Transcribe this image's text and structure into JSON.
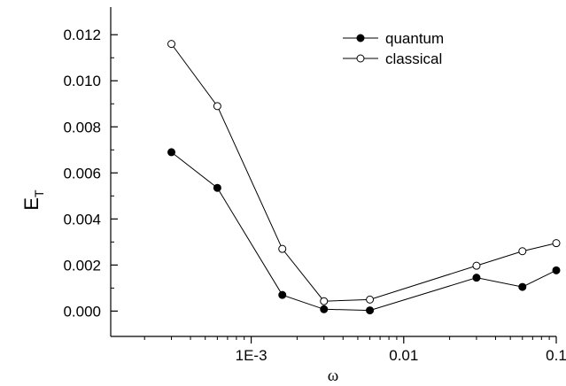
{
  "chart_data": {
    "type": "line",
    "xlabel": "ω",
    "ylabel": "E",
    "ylabel_subscript": "T",
    "x_scale": "log",
    "xlim": [
      0.00012,
      0.1
    ],
    "ylim": [
      -0.0011,
      0.0132
    ],
    "x_ticks": [
      0.001,
      0.01,
      0.1
    ],
    "x_tick_labels": [
      "1E-3",
      "0.01",
      "0.1"
    ],
    "y_ticks": [
      0.0,
      0.002,
      0.004,
      0.006,
      0.008,
      0.01,
      0.012
    ],
    "y_tick_labels": [
      "0.000",
      "0.002",
      "0.004",
      "0.006",
      "0.008",
      "0.010",
      "0.012"
    ],
    "grid": false,
    "legend_position": "top-right",
    "series": [
      {
        "name": "quantum",
        "marker": "filled-circle",
        "color": "#000000",
        "x": [
          0.0003,
          0.0006,
          0.0016,
          0.003,
          0.006,
          0.03,
          0.06,
          0.1
        ],
        "y": [
          0.0069,
          0.00535,
          0.0007,
          8e-05,
          3e-05,
          0.00145,
          0.00105,
          0.00177
        ]
      },
      {
        "name": "classical",
        "marker": "open-circle",
        "color": "#000000",
        "x": [
          0.0003,
          0.0006,
          0.0016,
          0.003,
          0.006,
          0.03,
          0.06,
          0.1
        ],
        "y": [
          0.0116,
          0.0089,
          0.0027,
          0.00043,
          0.0005,
          0.00197,
          0.0026,
          0.00295
        ]
      }
    ]
  }
}
